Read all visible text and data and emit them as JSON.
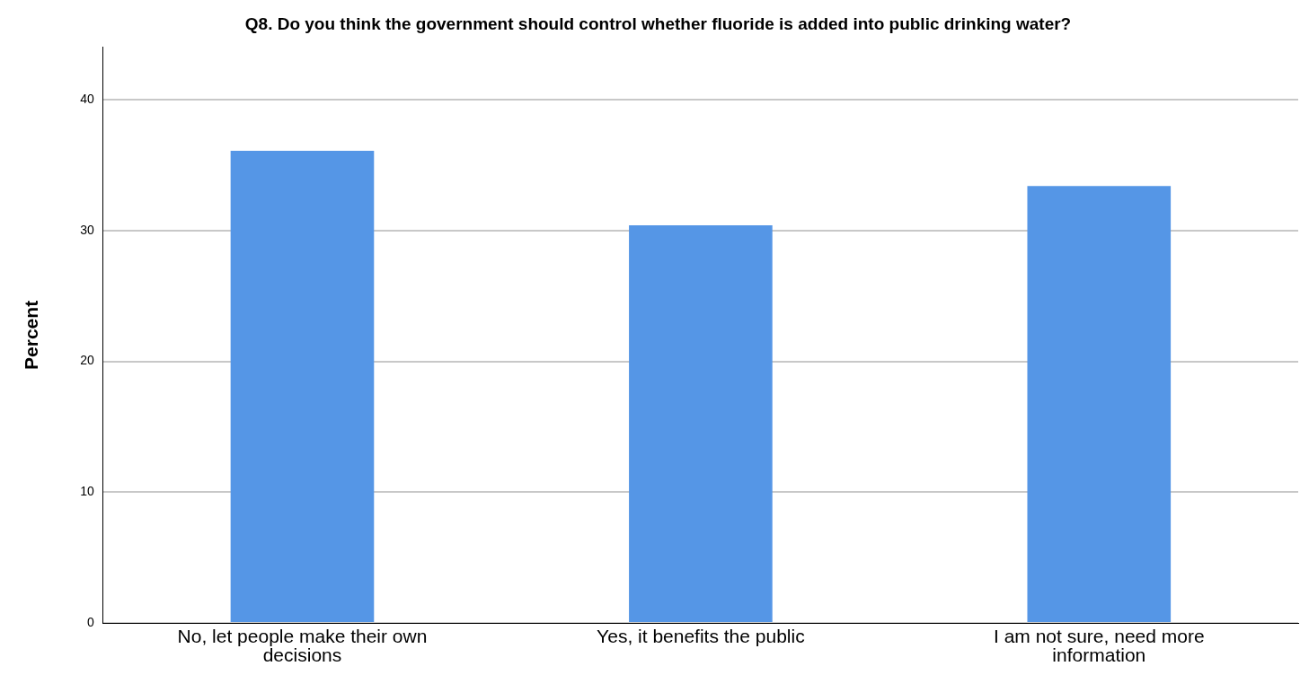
{
  "chart_data": {
    "type": "bar",
    "title": "Q8. Do you think the government should control whether fluoride is added into public drinking water?",
    "ylabel": "Percent",
    "categories": [
      "No, let people make their own decisions",
      "Yes, it benefits the public",
      "I am not sure, need more information"
    ],
    "values": [
      36.1,
      30.4,
      33.4
    ],
    "color": "#5596e6",
    "ylim": [
      0,
      44
    ],
    "yticks": [
      0,
      10,
      20,
      30,
      40
    ],
    "grid": "y",
    "legend": false
  }
}
